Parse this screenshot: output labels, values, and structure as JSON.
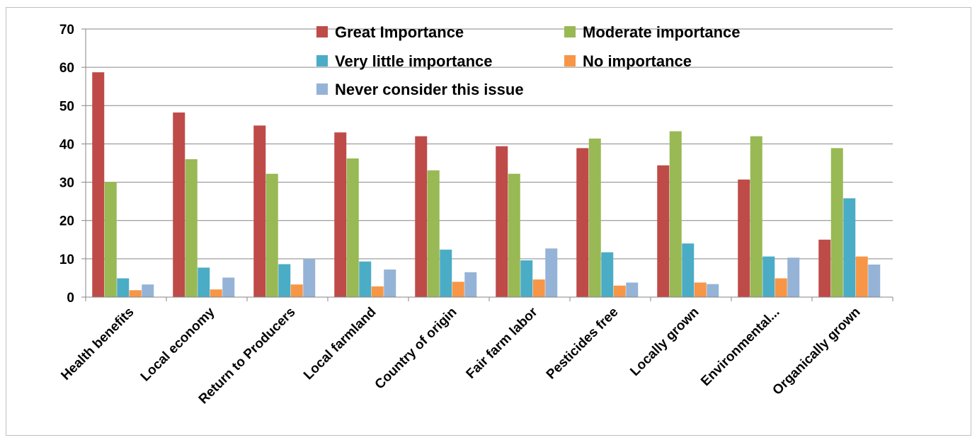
{
  "chart_data": {
    "type": "bar",
    "title": "",
    "xlabel": "",
    "ylabel": "",
    "ylim": [
      0,
      70
    ],
    "ytick_step": 10,
    "grid": true,
    "legend_position": "top-inside",
    "categories": [
      "Health benefits",
      "Local economy",
      "Return to Producers",
      "Local farmland",
      "Country of origin",
      "Fair farm labor",
      "Pesticides free",
      "Locally grown",
      "Environmental...",
      "Organically grown"
    ],
    "series": [
      {
        "name": "Great Importance",
        "color": "#BE4B48",
        "values": [
          58.7,
          48.2,
          44.8,
          43.0,
          42.0,
          39.4,
          38.9,
          34.4,
          30.7,
          15.0
        ]
      },
      {
        "name": "Moderate importance",
        "color": "#98B954",
        "values": [
          30.1,
          36.0,
          32.2,
          36.2,
          33.1,
          32.2,
          41.4,
          43.3,
          42.0,
          38.9
        ]
      },
      {
        "name": "Very little importance",
        "color": "#4BACC6",
        "values": [
          4.9,
          7.7,
          8.6,
          9.3,
          12.4,
          9.6,
          11.7,
          14.0,
          10.6,
          25.8
        ]
      },
      {
        "name": "No importance",
        "color": "#F79646",
        "values": [
          1.8,
          2.0,
          3.3,
          2.8,
          4.0,
          4.6,
          3.0,
          3.8,
          4.9,
          10.6
        ]
      },
      {
        "name": "Never consider this issue",
        "color": "#95B3D7",
        "values": [
          3.3,
          5.1,
          10.0,
          7.2,
          6.5,
          12.7,
          3.8,
          3.4,
          10.3,
          8.5
        ]
      }
    ]
  }
}
